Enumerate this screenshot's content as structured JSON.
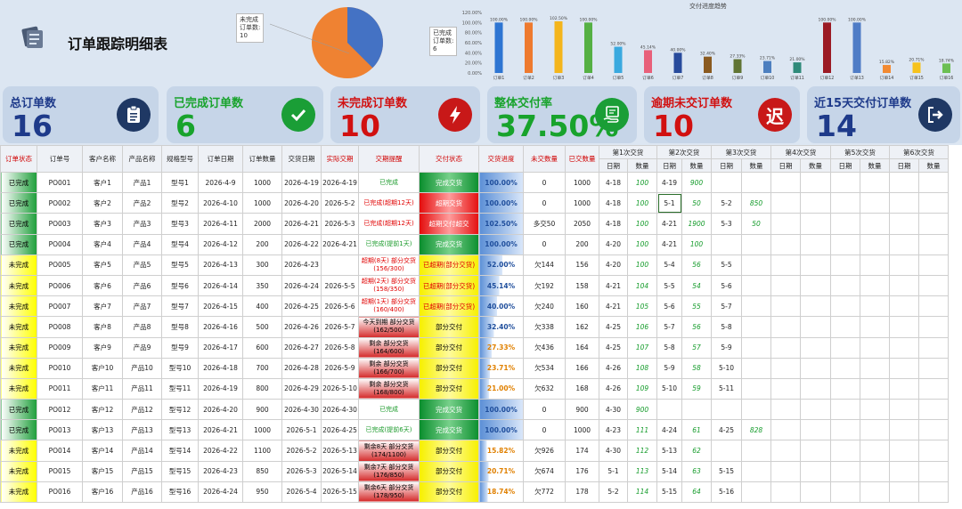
{
  "header": {
    "title": "订单跟踪明细表"
  },
  "pie_labels": {
    "left": "未完成\n订单数:\n10",
    "right": "已完成\n订单数:\n6"
  },
  "trend_chart": {
    "title": "交付进度趋势",
    "ylabels": [
      "120.00%",
      "100.00%",
      "80.00%",
      "60.00%",
      "40.00%",
      "20.00%",
      "0.00%"
    ],
    "bars": [
      {
        "name": "订单1",
        "value": "100.00%",
        "color": "#2e75d2"
      },
      {
        "name": "订单2",
        "value": "100.00%",
        "color": "#ee7a2f"
      },
      {
        "name": "订单3",
        "value": "102.50%",
        "color": "#f4b51c"
      },
      {
        "name": "订单4",
        "value": "100.00%",
        "color": "#55b044"
      },
      {
        "name": "订单5",
        "value": "52.00%",
        "color": "#3aa9df"
      },
      {
        "name": "订单6",
        "value": "45.14%",
        "color": "#e8607a"
      },
      {
        "name": "订单7",
        "value": "40.00%",
        "color": "#284b9c"
      },
      {
        "name": "订单8",
        "value": "32.40%",
        "color": "#8a5a20"
      },
      {
        "name": "订单9",
        "value": "27.33%",
        "color": "#607434"
      },
      {
        "name": "订单10",
        "value": "23.71%",
        "color": "#4d7fbf"
      },
      {
        "name": "订单11",
        "value": "21.00%",
        "color": "#2f8a7a"
      },
      {
        "name": "订单12",
        "value": "100.00%",
        "color": "#9b1a24"
      },
      {
        "name": "订单13",
        "value": "100.00%",
        "color": "#4f7cc6"
      },
      {
        "name": "订单14",
        "value": "15.82%",
        "color": "#f28a32"
      },
      {
        "name": "订单15",
        "value": "20.71%",
        "color": "#f6c21c"
      },
      {
        "name": "订单16",
        "value": "18.74%",
        "color": "#6cbf52"
      }
    ]
  },
  "cards": [
    {
      "label": "总订单数",
      "value": "16",
      "label_color": "#1e3a8a",
      "value_color": "#1e3a8a",
      "icon": "clipboard-icon",
      "icon_bg": "#1f3864"
    },
    {
      "label": "已完成订单数",
      "value": "6",
      "label_color": "#18a32c",
      "value_color": "#18a32c",
      "icon": "check-icon",
      "icon_bg": "#1a9e36"
    },
    {
      "label": "未完成订单数",
      "value": "10",
      "label_color": "#d11010",
      "value_color": "#d11010",
      "icon": "lightning-icon",
      "icon_bg": "#c81818"
    },
    {
      "label": "整体交付率",
      "value": "37.50%",
      "label_color": "#18a32c",
      "value_color": "#18a32c",
      "icon": "hand-icon",
      "icon_bg": "#1a9e36"
    },
    {
      "label": "逾期未交订单数",
      "value": "10",
      "label_color": "#d11010",
      "value_color": "#d11010",
      "icon": "overdue-icon",
      "icon_bg": "#c81818",
      "icon_text": "迟"
    },
    {
      "label": "近15天交付订单数",
      "value": "14",
      "label_color": "#1e3a8a",
      "value_color": "#1e3a8a",
      "icon": "arrow-exit-icon",
      "icon_bg": "#1f3864"
    }
  ],
  "table": {
    "headers": [
      "订单状态",
      "订单号",
      "客户名称",
      "产品名称",
      "规格型号",
      "订单日期",
      "订单数量",
      "交货日期",
      "实际交期",
      "交期提醒",
      "交付状态",
      "交货进度",
      "未交数量",
      "已交数量",
      "第1次交货",
      "第2次交货",
      "第3次交货",
      "第4次交货",
      "第5次交货",
      "第6次交货"
    ],
    "subheaders": [
      "日期",
      "数量"
    ],
    "rows": [
      {
        "status": "已完成",
        "no": "PO001",
        "cust": "客户1",
        "prod": "产品1",
        "spec": "型号1",
        "odate": "2026-4-9",
        "qty": "1000",
        "ddate": "2026-4-19",
        "adate": "2026-4-19",
        "remind": "已完成",
        "sit": "完成交货",
        "prog": "100.00%",
        "left": "0",
        "done": "1000",
        "d1": "4-18",
        "q1": "100",
        "d2": "4-19",
        "q2": "900",
        "d3": "",
        "q3": ""
      },
      {
        "status": "已完成",
        "no": "PO002",
        "cust": "客户2",
        "prod": "产品2",
        "spec": "型号2",
        "odate": "2026-4-10",
        "qty": "1000",
        "ddate": "2026-4-20",
        "adate": "2026-5-2",
        "remind": "已完成(超期12天)",
        "sit": "超期交货",
        "prog": "100.00%",
        "left": "0",
        "done": "1000",
        "d1": "4-18",
        "q1": "100",
        "d2": "5-1",
        "q2": "50",
        "d3": "5-2",
        "q3": "850"
      },
      {
        "status": "已完成",
        "no": "PO003",
        "cust": "客户3",
        "prod": "产品3",
        "spec": "型号3",
        "odate": "2026-4-11",
        "qty": "2000",
        "ddate": "2026-4-21",
        "adate": "2026-5-3",
        "remind": "已完成(超期12天)",
        "sit": "超期交付超交",
        "prog": "102.50%",
        "left": "多交50",
        "done": "2050",
        "d1": "4-18",
        "q1": "100",
        "d2": "4-21",
        "q2": "1900",
        "d3": "5-3",
        "q3": "50"
      },
      {
        "status": "已完成",
        "no": "PO004",
        "cust": "客户4",
        "prod": "产品4",
        "spec": "型号4",
        "odate": "2026-4-12",
        "qty": "200",
        "ddate": "2026-4-22",
        "adate": "2026-4-21",
        "remind": "已完成(提前1天)",
        "sit": "完成交货",
        "prog": "100.00%",
        "left": "0",
        "done": "200",
        "d1": "4-20",
        "q1": "100",
        "d2": "4-21",
        "q2": "100",
        "d3": "",
        "q3": ""
      },
      {
        "status": "未完成",
        "no": "PO005",
        "cust": "客户5",
        "prod": "产品5",
        "spec": "型号5",
        "odate": "2026-4-13",
        "qty": "300",
        "ddate": "2026-4-23",
        "adate": "",
        "remind": "超期(8天) 部分交货\n(156/300)",
        "sit": "已超期(部分交货)",
        "prog": "52.00%",
        "left": "欠144",
        "done": "156",
        "d1": "4-20",
        "q1": "100",
        "d2": "5-4",
        "q2": "56",
        "d3": "5-5",
        "q3": ""
      },
      {
        "status": "未完成",
        "no": "PO006",
        "cust": "客户6",
        "prod": "产品6",
        "spec": "型号6",
        "odate": "2026-4-14",
        "qty": "350",
        "ddate": "2026-4-24",
        "adate": "2026-5-5",
        "remind": "超期(2天) 部分交货\n(158/350)",
        "sit": "已超期(部分交货)",
        "prog": "45.14%",
        "left": "欠192",
        "done": "158",
        "d1": "4-21",
        "q1": "104",
        "d2": "5-5",
        "q2": "54",
        "d3": "5-6",
        "q3": ""
      },
      {
        "status": "未完成",
        "no": "PO007",
        "cust": "客户7",
        "prod": "产品7",
        "spec": "型号7",
        "odate": "2026-4-15",
        "qty": "400",
        "ddate": "2026-4-25",
        "adate": "2026-5-6",
        "remind": "超期(1天) 部分交货\n(160/400)",
        "sit": "已超期(部分交货)",
        "prog": "40.00%",
        "left": "欠240",
        "done": "160",
        "d1": "4-21",
        "q1": "105",
        "d2": "5-6",
        "q2": "55",
        "d3": "5-7",
        "q3": ""
      },
      {
        "status": "未完成",
        "no": "PO008",
        "cust": "客户8",
        "prod": "产品8",
        "spec": "型号8",
        "odate": "2026-4-16",
        "qty": "500",
        "ddate": "2026-4-26",
        "adate": "2026-5-7",
        "remind": "今天到期 部分交货\n(162/500)",
        "sit": "部分交付",
        "prog": "32.40%",
        "left": "欠338",
        "done": "162",
        "d1": "4-25",
        "q1": "106",
        "d2": "5-7",
        "q2": "56",
        "d3": "5-8",
        "q3": ""
      },
      {
        "status": "未完成",
        "no": "PO009",
        "cust": "客户9",
        "prod": "产品9",
        "spec": "型号9",
        "odate": "2026-4-17",
        "qty": "600",
        "ddate": "2026-4-27",
        "adate": "2026-5-8",
        "remind": "剩余 部分交货\n(164/600)",
        "sit": "部分交付",
        "prog": "27.33%",
        "left": "欠436",
        "done": "164",
        "d1": "4-25",
        "q1": "107",
        "d2": "5-8",
        "q2": "57",
        "d3": "5-9",
        "q3": ""
      },
      {
        "status": "未完成",
        "no": "PO010",
        "cust": "客户10",
        "prod": "产品10",
        "spec": "型号10",
        "odate": "2026-4-18",
        "qty": "700",
        "ddate": "2026-4-28",
        "adate": "2026-5-9",
        "remind": "剩余 部分交货\n(166/700)",
        "sit": "部分交付",
        "prog": "23.71%",
        "left": "欠534",
        "done": "166",
        "d1": "4-26",
        "q1": "108",
        "d2": "5-9",
        "q2": "58",
        "d3": "5-10",
        "q3": ""
      },
      {
        "status": "未完成",
        "no": "PO011",
        "cust": "客户11",
        "prod": "产品11",
        "spec": "型号11",
        "odate": "2026-4-19",
        "qty": "800",
        "ddate": "2026-4-29",
        "adate": "2026-5-10",
        "remind": "剩余 部分交货\n(168/800)",
        "sit": "部分交付",
        "prog": "21.00%",
        "left": "欠632",
        "done": "168",
        "d1": "4-26",
        "q1": "109",
        "d2": "5-10",
        "q2": "59",
        "d3": "5-11",
        "q3": ""
      },
      {
        "status": "已完成",
        "no": "PO012",
        "cust": "客户12",
        "prod": "产品12",
        "spec": "型号12",
        "odate": "2026-4-20",
        "qty": "900",
        "ddate": "2026-4-30",
        "adate": "2026-4-30",
        "remind": "已完成",
        "sit": "完成交货",
        "prog": "100.00%",
        "left": "0",
        "done": "900",
        "d1": "4-30",
        "q1": "900",
        "d2": "",
        "q2": "",
        "d3": "",
        "q3": ""
      },
      {
        "status": "已完成",
        "no": "PO013",
        "cust": "客户13",
        "prod": "产品13",
        "spec": "型号13",
        "odate": "2026-4-21",
        "qty": "1000",
        "ddate": "2026-5-1",
        "adate": "2026-4-25",
        "remind": "已完成(提前6天)",
        "sit": "完成交货",
        "prog": "100.00%",
        "left": "0",
        "done": "1000",
        "d1": "4-23",
        "q1": "111",
        "d2": "4-24",
        "q2": "61",
        "d3": "4-25",
        "q3": "828"
      },
      {
        "status": "未完成",
        "no": "PO014",
        "cust": "客户14",
        "prod": "产品14",
        "spec": "型号14",
        "odate": "2026-4-22",
        "qty": "1100",
        "ddate": "2026-5-2",
        "adate": "2026-5-13",
        "remind": "剩余8天 部分交货\n(174/1100)",
        "sit": "部分交付",
        "prog": "15.82%",
        "left": "欠926",
        "done": "174",
        "d1": "4-30",
        "q1": "112",
        "d2": "5-13",
        "q2": "62",
        "d3": "",
        "q3": ""
      },
      {
        "status": "未完成",
        "no": "PO015",
        "cust": "客户15",
        "prod": "产品15",
        "spec": "型号15",
        "odate": "2026-4-23",
        "qty": "850",
        "ddate": "2026-5-3",
        "adate": "2026-5-14",
        "remind": "剩余7天 部分交货\n(176/850)",
        "sit": "部分交付",
        "prog": "20.71%",
        "left": "欠674",
        "done": "176",
        "d1": "5-1",
        "q1": "113",
        "d2": "5-14",
        "q2": "63",
        "d3": "5-15",
        "q3": ""
      },
      {
        "status": "未完成",
        "no": "PO016",
        "cust": "客户16",
        "prod": "产品16",
        "spec": "型号16",
        "odate": "2026-4-24",
        "qty": "950",
        "ddate": "2026-5-4",
        "adate": "2026-5-15",
        "remind": "剩余6天 部分交货\n(178/950)",
        "sit": "部分交付",
        "prog": "18.74%",
        "left": "欠772",
        "done": "178",
        "d1": "5-2",
        "q1": "114",
        "d2": "5-15",
        "q2": "64",
        "d3": "5-16",
        "q3": ""
      }
    ]
  }
}
